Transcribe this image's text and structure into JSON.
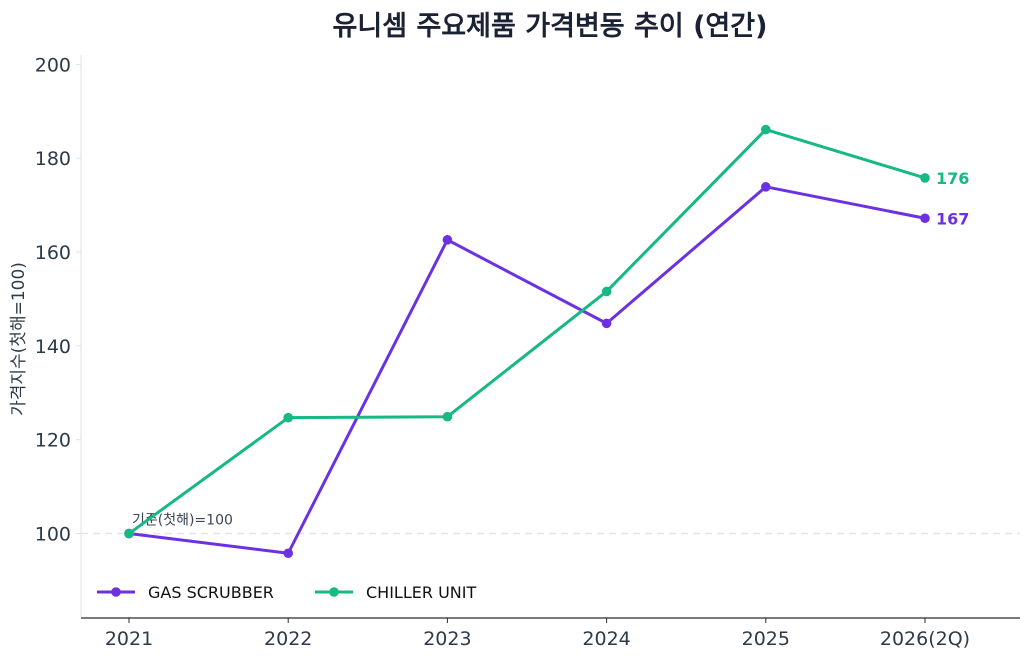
{
  "chart_data": {
    "type": "line",
    "title": "유니셈 주요제품 가격변동 추이 (연간)",
    "xlabel": "",
    "ylabel": "가격지수(첫해=100)",
    "categories": [
      "2021",
      "2022",
      "2023",
      "2024",
      "2025",
      "2026(2Q)"
    ],
    "ylim": [
      82,
      202
    ],
    "yticks": [
      100,
      120,
      140,
      160,
      180,
      200
    ],
    "grid": false,
    "legend_position": "bottom-left",
    "series": [
      {
        "name": "GAS SCRUBBER",
        "color": "#6d32e0",
        "values": [
          100,
          95.8,
          162.6,
          144.8,
          173.9,
          167.2
        ],
        "end_label": "167"
      },
      {
        "name": "CHILLER UNIT",
        "color": "#16b884",
        "values": [
          100,
          124.7,
          124.9,
          151.6,
          186.1,
          175.8
        ],
        "end_label": "176"
      }
    ],
    "baseline": {
      "value": 100,
      "label": "기준(첫해)=100"
    }
  }
}
